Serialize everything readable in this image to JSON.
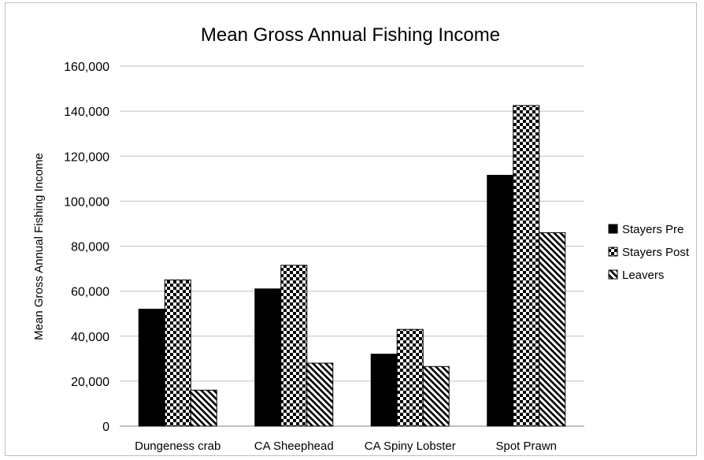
{
  "chart_data": {
    "type": "bar",
    "title": "Mean Gross Annual Fishing Income",
    "xlabel": "",
    "ylabel": "Mean Gross Annual Fishing Income",
    "ylim": [
      0,
      160000
    ],
    "yticks": [
      0,
      20000,
      40000,
      60000,
      80000,
      100000,
      120000,
      140000,
      160000
    ],
    "ytick_labels": [
      "0",
      "20,000",
      "40,000",
      "60,000",
      "80,000",
      "100,000",
      "120,000",
      "140,000",
      "160,000"
    ],
    "grid": "horizontal",
    "legend_position": "right",
    "categories": [
      "Dungeness crab",
      "CA Sheephead",
      "CA Spiny Lobster",
      "Spot Prawn"
    ],
    "series": [
      {
        "name": "Stayers Pre",
        "pattern": "solid",
        "color": "#000000",
        "values": [
          52000,
          61000,
          32000,
          111500
        ]
      },
      {
        "name": "Stayers Post",
        "pattern": "checkerboard",
        "color": "#000000",
        "values": [
          65000,
          71500,
          43000,
          142500
        ]
      },
      {
        "name": "Leavers",
        "pattern": "diagonal-stripes",
        "color": "#000000",
        "values": [
          16000,
          28000,
          26500,
          86000
        ]
      }
    ]
  }
}
